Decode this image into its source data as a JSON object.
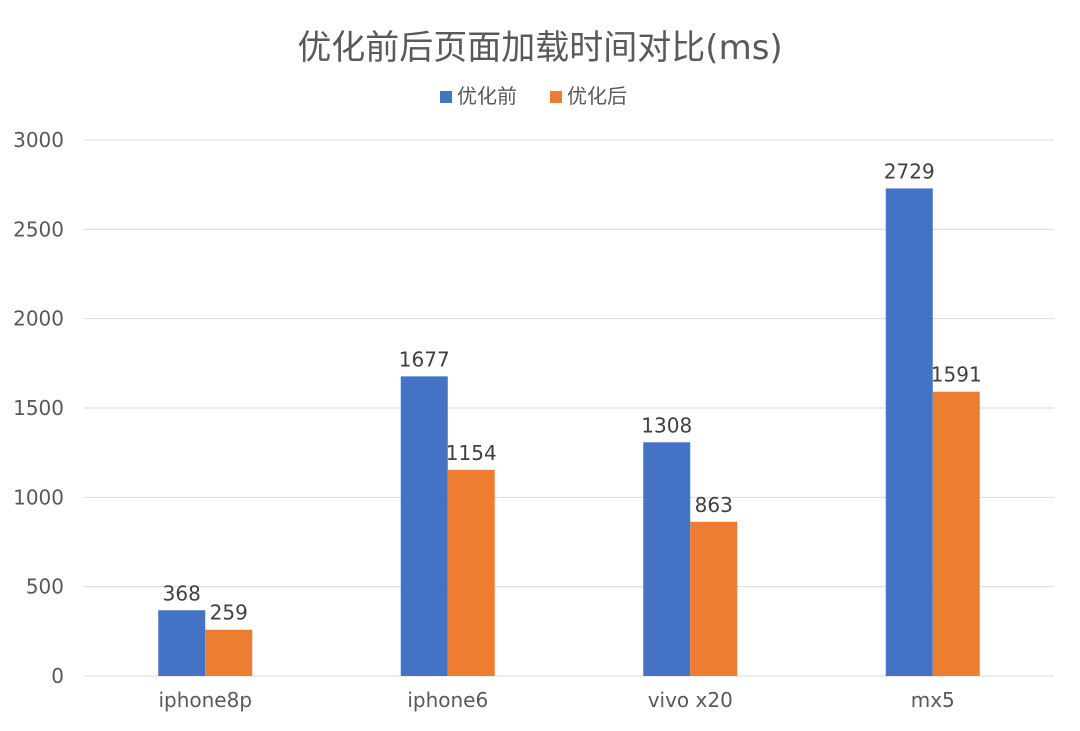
{
  "chart_data": {
    "type": "bar",
    "title": "优化前后页面加载时间对比(ms)",
    "categories": [
      "iphone8p",
      "iphone6",
      "vivo x20",
      "mx5"
    ],
    "series": [
      {
        "name": "优化前",
        "values": [
          368,
          1677,
          1308,
          2729
        ],
        "color": "#4472C4"
      },
      {
        "name": "优化后",
        "values": [
          259,
          1154,
          863,
          1591
        ],
        "color": "#ED7D31"
      }
    ],
    "ylim": [
      0,
      3000
    ],
    "yticks": [
      0,
      500,
      1000,
      1500,
      2000,
      2500,
      3000
    ],
    "xlabel": "",
    "ylabel": "",
    "grid": true,
    "legend": "top-center",
    "data_labels": true
  }
}
